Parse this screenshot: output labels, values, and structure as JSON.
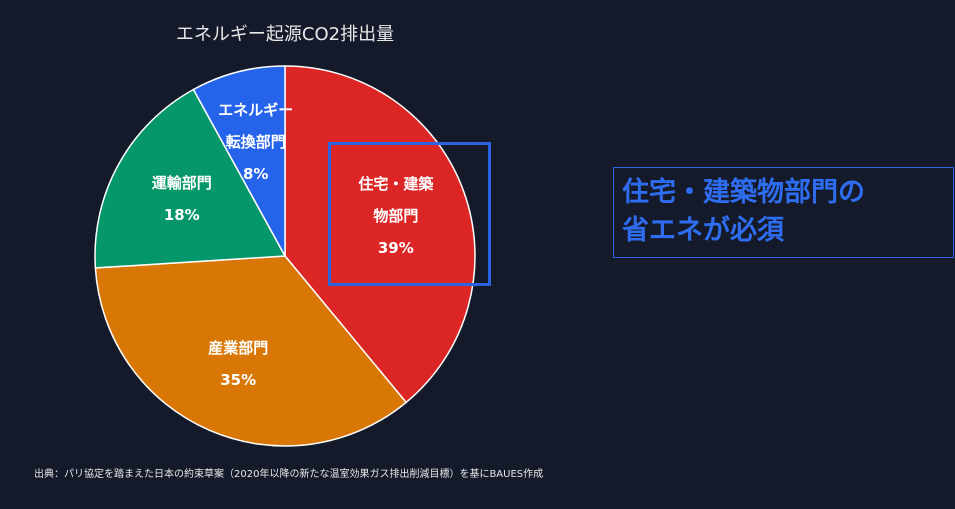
{
  "chart_data": {
    "type": "pie",
    "title": "エネルギー起源CO2排出量",
    "slices": [
      {
        "lines": [
          "住宅・建築",
          "物部門"
        ],
        "value": 39,
        "pct_label": "39%",
        "color": "#dc2626"
      },
      {
        "lines": [
          "産業部門"
        ],
        "value": 35,
        "pct_label": "35%",
        "color": "#d97706"
      },
      {
        "lines": [
          "運輸部門"
        ],
        "value": 18,
        "pct_label": "18%",
        "color": "#059669"
      },
      {
        "lines": [
          "エネルギー",
          "転換部門"
        ],
        "value": 8,
        "pct_label": "8%",
        "color": "#2563eb"
      }
    ],
    "start": "12 o'clock, clockwise",
    "highlighted_slice": "住宅・建築物部門"
  },
  "callout": {
    "line1": "住宅・建築物部門の",
    "line2": "省エネが必須",
    "color": "#2f6df0"
  },
  "source_note": "出典：パリ協定を踏まえた日本の約束草案（2020年以降の新たな温室効果ガス排出削減目標）を基にBAUES作成"
}
